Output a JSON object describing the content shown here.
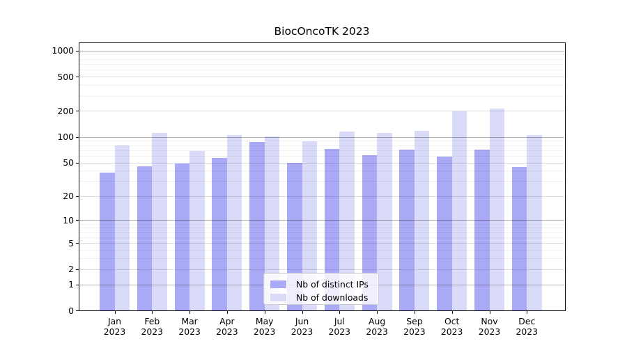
{
  "chart_data": {
    "type": "bar",
    "title": "BiocOncoTK 2023",
    "categories": [
      "Jan",
      "Feb",
      "Mar",
      "Apr",
      "May",
      "Jun",
      "Jul",
      "Aug",
      "Sep",
      "Oct",
      "Nov",
      "Dec"
    ],
    "category_year": "2023",
    "series": [
      {
        "name": "Nb of distinct IPs",
        "color": "#a9a9f5",
        "values": [
          38,
          45,
          49,
          57,
          87,
          50,
          72,
          61,
          71,
          59,
          71,
          44
        ]
      },
      {
        "name": "Nb of downloads",
        "color": "#dadaf9",
        "values": [
          80,
          112,
          68,
          105,
          101,
          88,
          116,
          112,
          117,
          199,
          213,
          105
        ]
      }
    ],
    "xlabel": "",
    "ylabel": "",
    "y_ticks": [
      0,
      1,
      2,
      5,
      10,
      20,
      50,
      100,
      200,
      500,
      1000
    ],
    "y_scale": "symlog (position proportional to log10(value+1))",
    "ylim": [
      0,
      1250
    ],
    "grid": true,
    "legend_position": "lower center"
  },
  "colors": {
    "background": "#ffffff",
    "bar_distinct_ips": "#a9a9f5",
    "bar_downloads": "#dadaf9",
    "axis": "#000000",
    "grid_decade": "#b3b3b3",
    "grid_labeled": "#dedede",
    "grid_minor": "#f0f0f0",
    "legend_border": "#cccccc"
  }
}
